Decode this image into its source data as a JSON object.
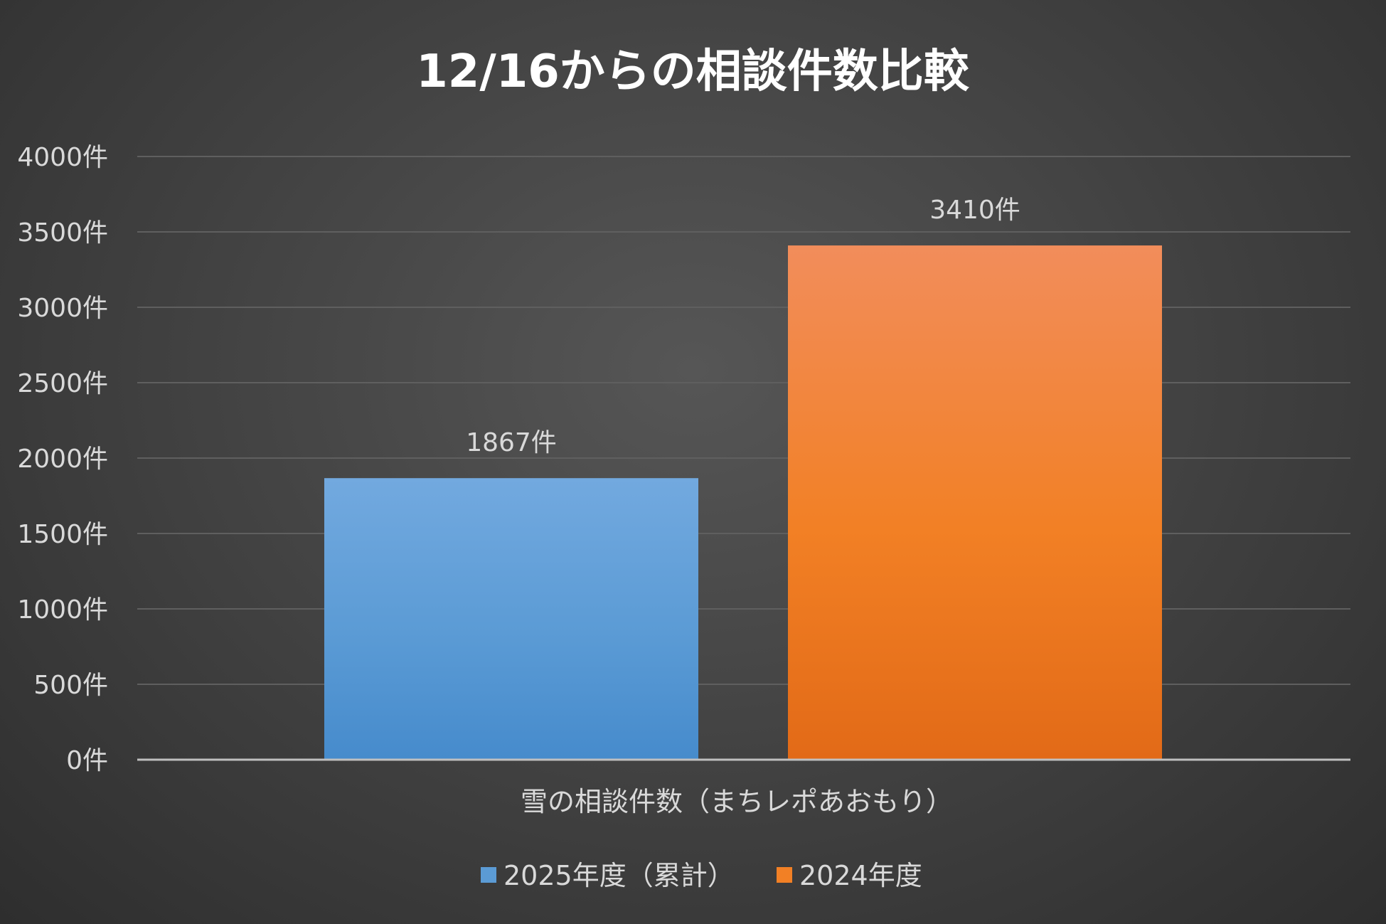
{
  "chart_data": {
    "type": "bar",
    "title": "12/16からの相談件数比較",
    "categories": [
      "雪の相談件数（まちレポあおもり）"
    ],
    "series": [
      {
        "name": "2025年度（累計）",
        "values": [
          1867
        ],
        "color": "#5b9bd5",
        "color_light": "#72a9df",
        "color_dark": "#468bcc",
        "label": "1867件"
      },
      {
        "name": "2024年度",
        "values": [
          3410
        ],
        "color": "#f28025",
        "color_light": "#f28d5b",
        "color_dark": "#e26a17",
        "label": "3410件"
      }
    ],
    "ylim": [
      0,
      4000
    ],
    "yticks": [
      {
        "value": 0,
        "label": "0件"
      },
      {
        "value": 500,
        "label": "500件"
      },
      {
        "value": 1000,
        "label": "1000件"
      },
      {
        "value": 1500,
        "label": "1500件"
      },
      {
        "value": 2000,
        "label": "2000件"
      },
      {
        "value": 2500,
        "label": "2500件"
      },
      {
        "value": 3000,
        "label": "3000件"
      },
      {
        "value": 3500,
        "label": "3500件"
      },
      {
        "value": 4000,
        "label": "4000件"
      }
    ],
    "grid": true,
    "legend": "bottom"
  }
}
